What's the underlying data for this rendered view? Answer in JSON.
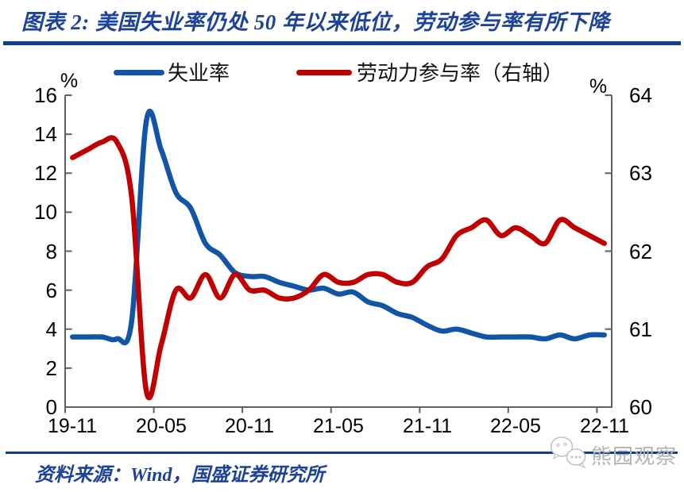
{
  "title": "图表 2: 美国失业率仍处 50 年以来低位，劳动参与率有所下降",
  "source": "资料来源：Wind，国盛证券研究所",
  "watermark": {
    "label": "熊园观察",
    "icon": "chat-bubbles-icon"
  },
  "legend": [
    {
      "label": "失业率",
      "color": "#1254A5"
    },
    {
      "label": "劳动力参与率（右轴）",
      "color": "#C00000"
    }
  ],
  "colors": {
    "line_blue": "#1254A5",
    "line_red": "#C00000",
    "title_blue": "#1C4299",
    "divider_blue": "#113C8F",
    "axis_gray": "#616161",
    "watermark_gray": "#B2B2B2"
  },
  "chart_data": {
    "type": "line",
    "title": "美国失业率与劳动参与率",
    "x": [
      "19-11",
      "19-12",
      "20-01",
      "20-02",
      "20-03",
      "20-04",
      "20-05",
      "20-06",
      "20-07",
      "20-08",
      "20-09",
      "20-10",
      "20-11",
      "20-12",
      "21-01",
      "21-02",
      "21-03",
      "21-04",
      "21-05",
      "21-06",
      "21-07",
      "21-08",
      "21-09",
      "21-10",
      "21-11",
      "21-12",
      "22-01",
      "22-02",
      "22-03",
      "22-04",
      "22-05",
      "22-06",
      "22-07",
      "22-08",
      "22-09",
      "22-10",
      "22-11"
    ],
    "x_ticks": [
      {
        "index": 0,
        "label": "19-11"
      },
      {
        "index": 6,
        "label": "20-05"
      },
      {
        "index": 12,
        "label": "20-11"
      },
      {
        "index": 18,
        "label": "21-05"
      },
      {
        "index": 24,
        "label": "21-11"
      },
      {
        "index": 30,
        "label": "22-05"
      },
      {
        "index": 36,
        "label": "22-11"
      }
    ],
    "series": [
      {
        "name": "失业率",
        "axis": "left",
        "color": "#1254A5",
        "values": [
          3.6,
          3.6,
          3.6,
          3.5,
          4.4,
          14.7,
          13.2,
          11.0,
          10.2,
          8.4,
          7.8,
          6.9,
          6.7,
          6.7,
          6.4,
          6.2,
          6.0,
          6.1,
          5.8,
          5.9,
          5.4,
          5.2,
          4.8,
          4.6,
          4.2,
          3.9,
          4.0,
          3.8,
          3.6,
          3.6,
          3.6,
          3.6,
          3.5,
          3.7,
          3.5,
          3.7,
          3.7
        ]
      },
      {
        "name": "劳动力参与率（右轴）",
        "axis": "right",
        "color": "#C00000",
        "values": [
          63.2,
          63.3,
          63.4,
          63.4,
          62.7,
          60.2,
          60.8,
          61.5,
          61.4,
          61.7,
          61.4,
          61.7,
          61.5,
          61.5,
          61.4,
          61.4,
          61.5,
          61.7,
          61.6,
          61.6,
          61.7,
          61.7,
          61.6,
          61.6,
          61.8,
          61.9,
          62.2,
          62.3,
          62.4,
          62.2,
          62.3,
          62.2,
          62.1,
          62.4,
          62.3,
          62.2,
          62.1
        ]
      }
    ],
    "left_axis": {
      "unit": "%",
      "min": 0,
      "max": 16,
      "ticks": [
        0,
        2,
        4,
        6,
        8,
        10,
        12,
        14,
        16
      ]
    },
    "right_axis": {
      "unit": "%",
      "min": 60,
      "max": 64,
      "ticks": [
        60,
        61,
        62,
        63,
        64
      ]
    },
    "grid": false,
    "legend_position": "top",
    "smooth": true
  }
}
